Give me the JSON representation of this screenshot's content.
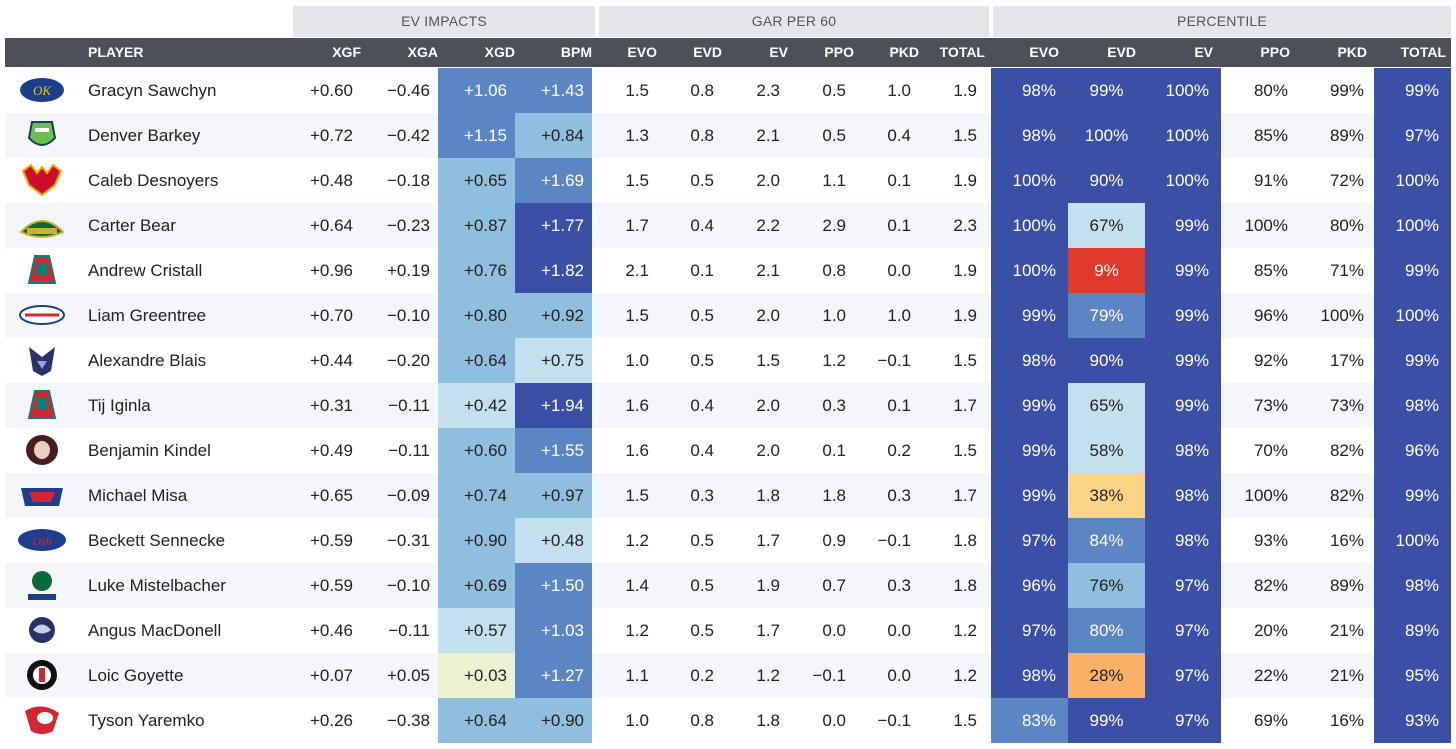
{
  "groups": {
    "ev_impacts": "EV IMPACTS",
    "gar_per_60": "GAR PER 60",
    "percentile": "PERCENTILE"
  },
  "headers": {
    "player": "PLAYER",
    "xgf": "XGF",
    "xga": "XGA",
    "xgd": "XGD",
    "bpm": "BPM",
    "gar": {
      "evo": "EVO",
      "evd": "EVD",
      "ev": "EV",
      "ppo": "PPO",
      "pkd": "PKD",
      "total": "TOTAL"
    },
    "pct": {
      "evo": "EVO",
      "evd": "EVD",
      "ev": "EV",
      "ppo": "PPO",
      "pkd": "PKD",
      "total": "TOTAL"
    }
  },
  "chart_data": {
    "type": "table",
    "columns": [
      "PLAYER",
      "XGF",
      "XGA",
      "XGD",
      "BPM",
      "EVO",
      "EVD",
      "EV",
      "PPO",
      "PKD",
      "TOTAL",
      "EVO",
      "EVD",
      "EV",
      "PPO",
      "PKD",
      "TOTAL"
    ],
    "rows": [
      {
        "logo": "oil-kings-logo-icon",
        "player": "Gracyn Sawchyn",
        "xgf": "+0.60",
        "xga": "−0.46",
        "xgd": "+1.06",
        "bpm": "+1.43",
        "gar": [
          "1.5",
          "0.8",
          "2.3",
          "0.5",
          "1.0",
          "1.9"
        ],
        "pct": [
          "98%",
          "99%",
          "100%",
          "80%",
          "99%",
          "99%"
        ]
      },
      {
        "logo": "mask-logo-icon",
        "player": "Denver Barkey",
        "xgf": "+0.72",
        "xga": "−0.42",
        "xgd": "+1.15",
        "bpm": "+0.84",
        "gar": [
          "1.3",
          "0.8",
          "2.1",
          "0.5",
          "0.4",
          "1.5"
        ],
        "pct": [
          "98%",
          "100%",
          "100%",
          "85%",
          "89%",
          "97%"
        ]
      },
      {
        "logo": "moose-logo-icon",
        "player": "Caleb Desnoyers",
        "xgf": "+0.48",
        "xga": "−0.18",
        "xgd": "+0.65",
        "bpm": "+1.69",
        "gar": [
          "1.5",
          "0.5",
          "2.0",
          "1.1",
          "0.1",
          "1.9"
        ],
        "pct": [
          "100%",
          "90%",
          "100%",
          "91%",
          "72%",
          "100%"
        ]
      },
      {
        "logo": "silvertips-logo-icon",
        "player": "Carter Bear",
        "xgf": "+0.64",
        "xga": "−0.23",
        "xgd": "+0.87",
        "bpm": "+1.77",
        "gar": [
          "1.7",
          "0.4",
          "2.2",
          "2.9",
          "0.1",
          "2.3"
        ],
        "pct": [
          "100%",
          "67%",
          "99%",
          "100%",
          "80%",
          "100%"
        ]
      },
      {
        "logo": "rockets-logo-icon",
        "player": "Andrew Cristall",
        "xgf": "+0.96",
        "xga": "+0.19",
        "xgd": "+0.76",
        "bpm": "+1.82",
        "gar": [
          "2.1",
          "0.1",
          "2.1",
          "0.8",
          "0.0",
          "1.9"
        ],
        "pct": [
          "100%",
          "9%",
          "99%",
          "85%",
          "71%",
          "99%"
        ]
      },
      {
        "logo": "spitfires-logo-icon",
        "player": "Liam Greentree",
        "xgf": "+0.70",
        "xga": "−0.10",
        "xgd": "+0.80",
        "bpm": "+0.92",
        "gar": [
          "1.5",
          "0.5",
          "2.0",
          "1.0",
          "1.0",
          "1.9"
        ],
        "pct": [
          "99%",
          "79%",
          "99%",
          "96%",
          "100%",
          "100%"
        ]
      },
      {
        "logo": "wolf-logo-icon",
        "player": "Alexandre Blais",
        "xgf": "+0.44",
        "xga": "−0.20",
        "xgd": "+0.64",
        "bpm": "+0.75",
        "gar": [
          "1.0",
          "0.5",
          "1.5",
          "1.2",
          "−0.1",
          "1.5"
        ],
        "pct": [
          "98%",
          "90%",
          "99%",
          "92%",
          "17%",
          "99%"
        ]
      },
      {
        "logo": "rockets-logo-icon",
        "player": "Tij Iginla",
        "xgf": "+0.31",
        "xga": "−0.11",
        "xgd": "+0.42",
        "bpm": "+1.94",
        "gar": [
          "1.6",
          "0.4",
          "2.0",
          "0.3",
          "0.1",
          "1.7"
        ],
        "pct": [
          "99%",
          "65%",
          "99%",
          "73%",
          "73%",
          "98%"
        ]
      },
      {
        "logo": "hitmen-logo-icon",
        "player": "Benjamin Kindel",
        "xgf": "+0.49",
        "xga": "−0.11",
        "xgd": "+0.60",
        "bpm": "+1.55",
        "gar": [
          "1.6",
          "0.4",
          "2.0",
          "0.1",
          "0.2",
          "1.5"
        ],
        "pct": [
          "99%",
          "58%",
          "98%",
          "70%",
          "82%",
          "96%"
        ]
      },
      {
        "logo": "saginaw-logo-icon",
        "player": "Michael Misa",
        "xgf": "+0.65",
        "xga": "−0.09",
        "xgd": "+0.74",
        "bpm": "+0.97",
        "gar": [
          "1.5",
          "0.3",
          "1.8",
          "1.8",
          "0.3",
          "1.7"
        ],
        "pct": [
          "99%",
          "38%",
          "98%",
          "100%",
          "82%",
          "99%"
        ]
      },
      {
        "logo": "oshawa-logo-icon",
        "player": "Beckett Sennecke",
        "xgf": "+0.59",
        "xga": "−0.31",
        "xgd": "+0.90",
        "bpm": "+0.48",
        "gar": [
          "1.2",
          "0.5",
          "1.7",
          "0.9",
          "−0.1",
          "1.8"
        ],
        "pct": [
          "97%",
          "84%",
          "98%",
          "93%",
          "16%",
          "100%"
        ]
      },
      {
        "logo": "broncos-logo-icon",
        "player": "Luke Mistelbacher",
        "xgf": "+0.59",
        "xga": "−0.10",
        "xgd": "+0.69",
        "bpm": "+1.50",
        "gar": [
          "1.4",
          "0.5",
          "1.9",
          "0.7",
          "0.3",
          "1.8"
        ],
        "pct": [
          "96%",
          "76%",
          "97%",
          "82%",
          "89%",
          "98%"
        ]
      },
      {
        "logo": "shark-logo-icon",
        "player": "Angus MacDonell",
        "xgf": "+0.46",
        "xga": "−0.11",
        "xgd": "+0.57",
        "bpm": "+1.03",
        "gar": [
          "1.2",
          "0.5",
          "1.7",
          "0.0",
          "0.0",
          "1.2"
        ],
        "pct": [
          "97%",
          "80%",
          "97%",
          "20%",
          "21%",
          "89%"
        ]
      },
      {
        "logo": "remparts-logo-icon",
        "player": "Loic Goyette",
        "xgf": "+0.07",
        "xga": "+0.05",
        "xgd": "+0.03",
        "bpm": "+1.27",
        "gar": [
          "1.1",
          "0.2",
          "1.2",
          "−0.1",
          "0.0",
          "1.2"
        ],
        "pct": [
          "98%",
          "28%",
          "97%",
          "22%",
          "21%",
          "95%"
        ]
      },
      {
        "logo": "eagle-logo-icon",
        "player": "Tyson Yaremko",
        "xgf": "+0.26",
        "xga": "−0.38",
        "xgd": "+0.64",
        "bpm": "+0.90",
        "gar": [
          "1.0",
          "0.8",
          "1.8",
          "0.0",
          "−0.1",
          "1.5"
        ],
        "pct": [
          "83%",
          "99%",
          "97%",
          "69%",
          "16%",
          "93%"
        ]
      }
    ]
  },
  "colors": {
    "dark_blue": "#3a4fa6",
    "mid_blue": "#5b86c4",
    "light_blue": "#8fbfde",
    "pale_blue": "#c2e0ee",
    "pale_yellow": "#eef1cf",
    "orange": "#fbb068",
    "peach": "#fdd385",
    "red": "#e03a2c",
    "header_bg": "#4d5157",
    "group_bg": "#e4e6ea"
  }
}
